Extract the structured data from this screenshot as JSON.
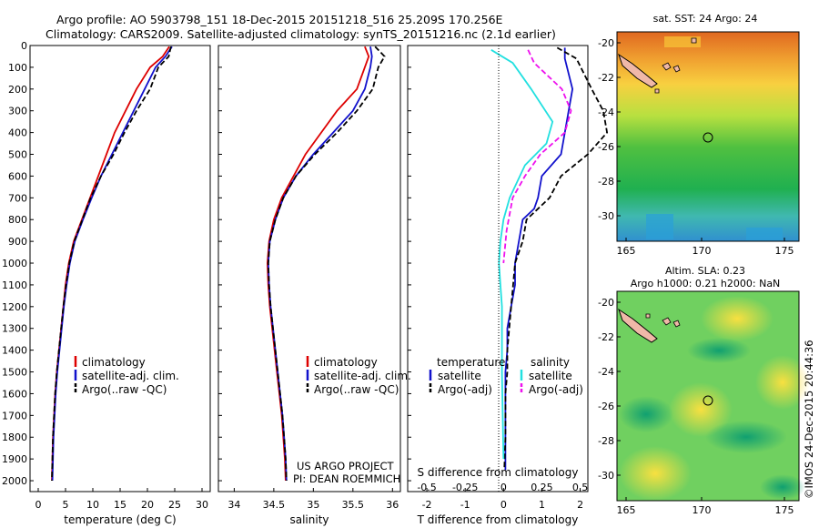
{
  "header": {
    "line1": "Argo profile: AO 5903798_151 18-Dec-2015 20151218_516 25.209S 170.256E",
    "line2": "Climatology: CARS2009. Satellite-adjusted climatology: synTS_20151216.nc (2.1d earlier)"
  },
  "credits": {
    "project": "US ARGO PROJECT",
    "pi": "PI: DEAN ROEMMICH",
    "copyright": "©IMOS 24-Dec-2015 20:44:36"
  },
  "colors": {
    "climatology": "#dd0000",
    "satellite": "#1111cc",
    "argo": "#000000",
    "salinity_satellite": "#22e0e0",
    "salinity_argo": "#ee11ee"
  },
  "chart_data": [
    {
      "id": "temperature",
      "type": "line",
      "xlabel": "temperature (deg C)",
      "ylabel": "",
      "xlim": [
        -1.5,
        31.5
      ],
      "ylim": [
        2050,
        0
      ],
      "xticks": [
        0,
        5,
        10,
        15,
        20,
        25,
        30
      ],
      "yticks": [
        0,
        100,
        200,
        300,
        400,
        500,
        600,
        700,
        800,
        900,
        1000,
        1100,
        1200,
        1300,
        1400,
        1500,
        1600,
        1700,
        1800,
        1900,
        2000
      ],
      "legend": [
        "climatology",
        "satellite-adj. clim.",
        "Argo(..raw -QC)"
      ],
      "series": [
        {
          "name": "climatology",
          "x": [
            24.0,
            22.8,
            20.5,
            18.0,
            16.0,
            14.0,
            12.5,
            11.0,
            9.5,
            8.0,
            6.5,
            5.6,
            5.0,
            4.6,
            4.2,
            3.8,
            3.4,
            3.1,
            2.9,
            2.7,
            2.6,
            2.5
          ],
          "y": [
            5,
            50,
            100,
            200,
            300,
            400,
            500,
            600,
            700,
            800,
            900,
            1000,
            1100,
            1200,
            1300,
            1400,
            1500,
            1600,
            1700,
            1800,
            1900,
            2000
          ]
        },
        {
          "name": "satellite-adj. clim.",
          "x": [
            24.5,
            23.3,
            21.5,
            19.5,
            17.5,
            15.5,
            13.5,
            11.5,
            9.8,
            8.2,
            6.7,
            5.8,
            5.2,
            4.7,
            4.3,
            3.9,
            3.5,
            3.2,
            3.0,
            2.8,
            2.7,
            2.6
          ],
          "y": [
            5,
            50,
            100,
            200,
            300,
            400,
            500,
            600,
            700,
            800,
            900,
            1000,
            1100,
            1200,
            1300,
            1400,
            1500,
            1600,
            1700,
            1800,
            1900,
            2000
          ]
        },
        {
          "name": "Argo(..raw -QC)",
          "x": [
            24.3,
            23.9,
            22.0,
            20.5,
            18.0,
            15.8,
            13.8,
            11.5,
            9.6,
            8.1,
            6.6,
            5.7,
            5.1,
            4.6,
            4.2,
            3.8,
            3.4,
            3.1,
            2.9,
            2.7,
            2.6,
            2.5
          ],
          "y": [
            5,
            50,
            100,
            200,
            300,
            400,
            500,
            600,
            700,
            800,
            900,
            1000,
            1100,
            1200,
            1300,
            1400,
            1500,
            1600,
            1700,
            1800,
            1900,
            2000
          ]
        }
      ]
    },
    {
      "id": "salinity",
      "type": "line",
      "xlabel": "salinity",
      "ylabel": "",
      "xlim": [
        33.8,
        36.1
      ],
      "ylim": [
        2050,
        0
      ],
      "xticks": [
        34,
        34.5,
        35,
        35.5,
        36
      ],
      "legend": [
        "climatology",
        "satellite-adj. clim.",
        "Argo(..raw -QC)"
      ],
      "series": [
        {
          "name": "climatology",
          "x": [
            35.65,
            35.7,
            35.65,
            35.55,
            35.3,
            35.1,
            34.9,
            34.75,
            34.6,
            34.5,
            34.44,
            34.42,
            34.43,
            34.45,
            34.48,
            34.51,
            34.54,
            34.57,
            34.6,
            34.62,
            34.64,
            34.65
          ],
          "y": [
            5,
            50,
            100,
            200,
            300,
            400,
            500,
            600,
            700,
            800,
            900,
            1000,
            1100,
            1200,
            1300,
            1400,
            1500,
            1600,
            1700,
            1800,
            1900,
            2000
          ]
        },
        {
          "name": "satellite-adj. clim.",
          "x": [
            35.72,
            35.74,
            35.72,
            35.65,
            35.5,
            35.25,
            35.0,
            34.78,
            34.62,
            34.52,
            34.45,
            34.43,
            34.44,
            34.46,
            34.49,
            34.52,
            34.55,
            34.58,
            34.61,
            34.63,
            34.65,
            34.66
          ],
          "y": [
            5,
            50,
            100,
            200,
            300,
            400,
            500,
            600,
            700,
            800,
            900,
            1000,
            1100,
            1200,
            1300,
            1400,
            1500,
            1600,
            1700,
            1800,
            1900,
            2000
          ]
        },
        {
          "name": "Argo(..raw -QC)",
          "x": [
            35.78,
            35.9,
            35.82,
            35.75,
            35.55,
            35.3,
            35.02,
            34.78,
            34.62,
            34.52,
            34.45,
            34.43,
            34.44,
            34.46,
            34.49,
            34.52,
            34.55,
            34.58,
            34.61,
            34.63,
            34.65,
            34.66
          ],
          "y": [
            5,
            50,
            100,
            200,
            300,
            400,
            500,
            600,
            700,
            800,
            900,
            1000,
            1100,
            1200,
            1300,
            1400,
            1500,
            1600,
            1700,
            1800,
            1900,
            2000
          ]
        }
      ]
    },
    {
      "id": "differences",
      "type": "line",
      "xlabel": "T difference from climatology",
      "xlabel_top": "S difference from climatology",
      "xlim": [
        -2.5,
        2.2
      ],
      "ylim": [
        2050,
        0
      ],
      "xticks": [
        -2,
        -1,
        0,
        1,
        2
      ],
      "xticks_S": [
        -0.5,
        -0.25,
        0,
        0.25,
        0.5
      ],
      "legend_temperature_title": "temperature",
      "legend_salinity_title": "salinity",
      "legend_items": [
        "satellite",
        "Argo(-adj)",
        "satellite",
        "Argo(-adj)"
      ],
      "series": [
        {
          "name": "temperature satellite",
          "x": [
            1.6,
            1.6,
            1.8,
            1.7,
            1.6,
            1.5,
            1.0,
            0.9,
            0.8,
            0.5,
            0.4,
            0.3,
            0.3,
            0.2,
            0.1,
            0.1,
            0.05,
            0.05,
            0.05,
            0.05,
            0.05
          ],
          "y": [
            10,
            60,
            200,
            300,
            400,
            500,
            600,
            700,
            750,
            800,
            900,
            1000,
            1100,
            1200,
            1300,
            1400,
            1500,
            1600,
            1700,
            1800,
            1950
          ]
        },
        {
          "name": "temperature Argo(-adj)",
          "x": [
            1.4,
            1.9,
            2.3,
            2.6,
            2.7,
            2.2,
            1.5,
            1.2,
            0.6,
            0.5,
            0.3,
            0.25,
            0.2,
            0.15,
            0.1,
            0.1,
            0.05,
            0.05,
            0.05,
            0.02
          ],
          "y": [
            10,
            60,
            200,
            300,
            400,
            500,
            600,
            700,
            800,
            900,
            1000,
            1100,
            1200,
            1300,
            1400,
            1500,
            1600,
            1700,
            1800,
            1950
          ]
        },
        {
          "name": "salinity satellite",
          "x": [
            -0.08,
            0.06,
            0.18,
            0.32,
            0.28,
            0.14,
            0.04,
            0.0,
            -0.02,
            -0.03,
            -0.02,
            -0.01,
            -0.01,
            0.0
          ],
          "y": [
            20,
            80,
            200,
            350,
            450,
            550,
            700,
            800,
            900,
            1000,
            1100,
            1200,
            1500,
            1900
          ]
        },
        {
          "name": "salinity Argo(-adj)",
          "x": [
            0.16,
            0.2,
            0.38,
            0.44,
            0.4,
            0.24,
            0.14,
            0.06,
            0.02,
            0.0
          ],
          "y": [
            20,
            80,
            200,
            300,
            400,
            500,
            600,
            700,
            850,
            1000
          ]
        }
      ]
    }
  ],
  "maps": {
    "sst": {
      "title": "sat. SST: 24 Argo: 24",
      "xticks": [
        "165",
        "170",
        "175"
      ],
      "yticks": [
        "-20",
        "-22",
        "-24",
        "-26",
        "-28",
        "-30"
      ]
    },
    "sla": {
      "title1": "Altim. SLA: 0.23",
      "title2": "Argo h1000: 0.21 h2000: NaN",
      "xticks": [
        "165",
        "170",
        "175"
      ],
      "yticks": [
        "-20",
        "-22",
        "-24",
        "-26",
        "-28",
        "-30"
      ]
    }
  }
}
